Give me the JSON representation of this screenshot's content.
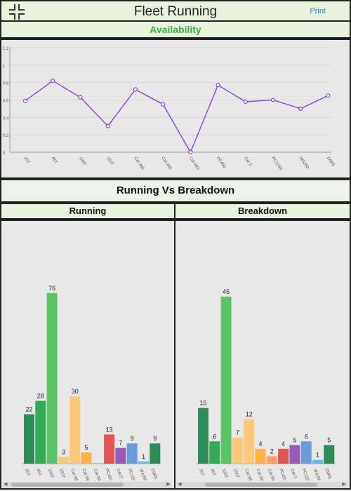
{
  "header": {
    "title": "Fleet Running",
    "print_label": "Print",
    "menu_icon": "expand-corners-icon"
  },
  "availability": {
    "title": "Availability",
    "chart_data": {
      "type": "line",
      "title": "",
      "xlabel": "",
      "ylabel": "",
      "categories": [
        "35T",
        "45T",
        "100T",
        "150T",
        "Cat 988",
        "Cat 992",
        "Cat 993",
        "PC450",
        "Cat 5",
        "PC1250",
        "WA250",
        "D9R5"
      ],
      "values": [
        0.59,
        0.82,
        0.63,
        0.3,
        0.72,
        0.55,
        0.0,
        0.77,
        0.58,
        0.6,
        0.5,
        0.65
      ],
      "yticks": [
        "0",
        "0.2",
        "0.4",
        "0.6",
        "0.8",
        "1",
        "1.2"
      ],
      "ylim": [
        0,
        1.2
      ],
      "color": "#8a3fe0",
      "grid": true
    }
  },
  "comparison": {
    "title": "Running Vs Breakdown",
    "running": {
      "title": "Running",
      "chart_data": {
        "type": "bar",
        "title": "",
        "categories": [
          "35T",
          "45T",
          "100T",
          "150T",
          "Cat 988",
          "Cat 992",
          "Cat 993",
          "PC450",
          "Cat 5",
          "PC1250",
          "WA250",
          "D9R5"
        ],
        "values": [
          22,
          28,
          76,
          3,
          30,
          5,
          0,
          13,
          7,
          9,
          1,
          9
        ],
        "colors": [
          "#2e8b57",
          "#33aa55",
          "#5cc466",
          "#fac878",
          "#fac878",
          "#ffb347",
          "#ff9f6b",
          "#e05555",
          "#9b59b6",
          "#6a9ad8",
          "#5bc0eb",
          "#2e8b57"
        ],
        "ylim": [
          0,
          80
        ]
      }
    },
    "breakdown": {
      "title": "Breakdown",
      "chart_data": {
        "type": "bar",
        "title": "",
        "categories": [
          "35T",
          "45T",
          "100T",
          "150T",
          "Cat 988",
          "Cat 992",
          "Cat 993",
          "PC450",
          "Cat 5",
          "PC1250",
          "WA250",
          "D9R5"
        ],
        "values": [
          15,
          6,
          45,
          7,
          12,
          4,
          2,
          4,
          5,
          6,
          1,
          5
        ],
        "colors": [
          "#2e8b57",
          "#33aa55",
          "#5cc466",
          "#fac878",
          "#fac878",
          "#ffb347",
          "#ff9f6b",
          "#e05555",
          "#9b59b6",
          "#6a9ad8",
          "#5bc0eb",
          "#2e8b57"
        ],
        "ylim": [
          0,
          48
        ]
      }
    }
  }
}
